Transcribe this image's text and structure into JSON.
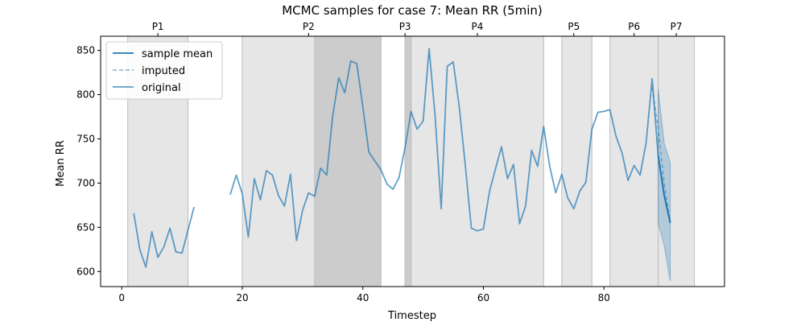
{
  "chart_data": {
    "type": "line",
    "title": "MCMC samples for case 7: Mean RR (5min)",
    "xlabel": "Timestep",
    "ylabel": "Mean RR",
    "xlim": [
      -3.5,
      100
    ],
    "ylim": [
      583,
      866
    ],
    "x_ticks": [
      0,
      20,
      40,
      60,
      80
    ],
    "y_ticks": [
      600,
      650,
      700,
      750,
      800,
      850
    ],
    "legend": {
      "placement": "top-left",
      "entries": [
        "sample mean",
        "imputed",
        "original"
      ]
    },
    "colors": {
      "line": "#1f77b4",
      "period_fill": "#e6e6e6",
      "period_overlap": "#cccccc",
      "period_edge": "#bdbdbd"
    },
    "periods": [
      {
        "label": "P1",
        "start": 1,
        "end": 11
      },
      {
        "label": "P2",
        "start": 20,
        "end": 43
      },
      {
        "label": "P3",
        "start": 47,
        "end": 48
      },
      {
        "label": "P4",
        "start": 48,
        "end": 70
      },
      {
        "label": "P5",
        "start": 73,
        "end": 78
      },
      {
        "label": "P6",
        "start": 81,
        "end": 89
      },
      {
        "label": "P7",
        "start": 89,
        "end": 95
      }
    ],
    "period_overlaps": [
      {
        "start": 32,
        "end": 43
      },
      {
        "start": 47,
        "end": 48
      }
    ],
    "period_label_positions": [
      6,
      31,
      47,
      59,
      75,
      85,
      92
    ],
    "series": [
      {
        "name": "original",
        "segments": [
          [
            [
              2,
              666
            ],
            [
              3,
              625
            ],
            [
              4,
              605
            ],
            [
              5,
              645
            ],
            [
              6,
              616
            ],
            [
              7,
              628
            ],
            [
              8,
              649
            ],
            [
              9,
              622
            ],
            [
              10,
              621
            ],
            [
              11,
              647
            ],
            [
              12,
              673
            ]
          ],
          [
            [
              18,
              687
            ],
            [
              19,
              709
            ],
            [
              20,
              688
            ],
            [
              21,
              639
            ],
            [
              22,
              705
            ],
            [
              23,
              681
            ],
            [
              24,
              714
            ],
            [
              25,
              709
            ],
            [
              26,
              686
            ],
            [
              27,
              674
            ],
            [
              28,
              710
            ],
            [
              29,
              635
            ],
            [
              30,
              669
            ],
            [
              31,
              689
            ],
            [
              32,
              685
            ],
            [
              33,
              717
            ],
            [
              34,
              709
            ],
            [
              35,
              776
            ],
            [
              36,
              819
            ],
            [
              37,
              802
            ],
            [
              38,
              838
            ],
            [
              39,
              835
            ],
            [
              40,
              786
            ],
            [
              41,
              735
            ],
            [
              42,
              725
            ],
            [
              43,
              715
            ],
            [
              44,
              699
            ],
            [
              45,
              693
            ],
            [
              46,
              706
            ],
            [
              47,
              740
            ],
            [
              48,
              781
            ],
            [
              49,
              761
            ],
            [
              50,
              770
            ],
            [
              51,
              852
            ],
            [
              52,
              775
            ],
            [
              53,
              671
            ],
            [
              54,
              832
            ],
            [
              55,
              837
            ],
            [
              56,
              786
            ],
            [
              57,
              720
            ],
            [
              58,
              649
            ],
            [
              59,
              646
            ],
            [
              60,
              648
            ],
            [
              61,
              690
            ],
            [
              62,
              716
            ],
            [
              63,
              741
            ],
            [
              64,
              705
            ],
            [
              65,
              721
            ],
            [
              66,
              654
            ],
            [
              67,
              674
            ],
            [
              68,
              737
            ],
            [
              69,
              719
            ],
            [
              70,
              764
            ],
            [
              71,
              719
            ],
            [
              72,
              689
            ],
            [
              73,
              710
            ],
            [
              74,
              683
            ],
            [
              75,
              671
            ],
            [
              76,
              691
            ],
            [
              77,
              701
            ],
            [
              78,
              761
            ],
            [
              79,
              780
            ],
            [
              80,
              781
            ],
            [
              81,
              783
            ],
            [
              82,
              753
            ],
            [
              83,
              734
            ],
            [
              84,
              703
            ],
            [
              85,
              720
            ],
            [
              86,
              709
            ],
            [
              87,
              746
            ],
            [
              88,
              818
            ],
            [
              89,
              730
            ]
          ]
        ]
      },
      {
        "name": "imputed",
        "values": [
          [
            88,
            808
          ],
          [
            89,
            761
          ],
          [
            90,
            700
          ],
          [
            91,
            655
          ]
        ]
      },
      {
        "name": "sample mean",
        "values": [
          [
            89,
            731
          ],
          [
            90,
            686
          ],
          [
            91,
            655
          ]
        ]
      }
    ],
    "credible_band": {
      "x": [
        89,
        90,
        91
      ],
      "upper": [
        806,
        745,
        723
      ],
      "lower": [
        655,
        629,
        589
      ]
    }
  }
}
